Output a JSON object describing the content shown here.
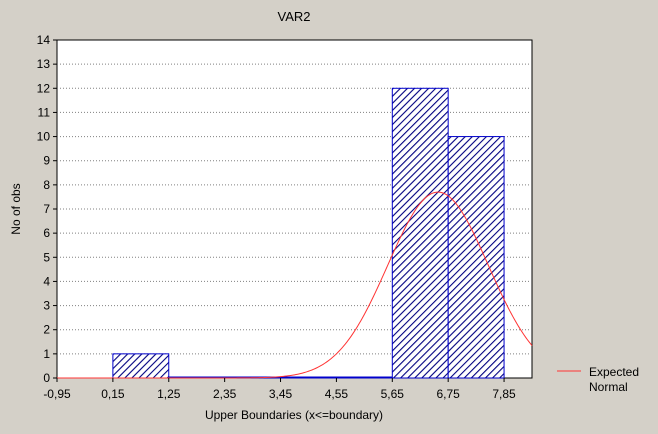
{
  "chart_data": {
    "type": "bar",
    "title": "VAR2",
    "xlabel": "Upper Boundaries (x<=boundary)",
    "ylabel": "No of obs",
    "x_tick_labels": [
      "-0,95",
      "0,15",
      "1,25",
      "2,35",
      "3,45",
      "4,55",
      "5,65",
      "6,75",
      "7,85"
    ],
    "x_ticks": [
      -0.95,
      0.15,
      1.25,
      2.35,
      3.45,
      4.55,
      5.65,
      6.75,
      7.85
    ],
    "xlim": [
      -0.95,
      8.4
    ],
    "ylim": [
      0,
      14
    ],
    "y_ticks": [
      0,
      1,
      2,
      3,
      4,
      5,
      6,
      7,
      8,
      9,
      10,
      11,
      12,
      13,
      14
    ],
    "grid": "horizontal dotted",
    "bins": [
      {
        "from": 0.15,
        "to": 1.25,
        "count": 1
      },
      {
        "from": 1.25,
        "to": 2.35,
        "count": 0
      },
      {
        "from": 2.35,
        "to": 3.45,
        "count": 0
      },
      {
        "from": 3.45,
        "to": 4.55,
        "count": 0
      },
      {
        "from": 4.55,
        "to": 5.65,
        "count": 0
      },
      {
        "from": 5.65,
        "to": 6.75,
        "count": 12
      },
      {
        "from": 6.75,
        "to": 7.85,
        "count": 10
      }
    ],
    "expected_normal": {
      "name": "Expected Normal",
      "mean": 6.55,
      "sd": 0.99,
      "peak": 7.7
    },
    "legend": {
      "placement": "right",
      "lines": [
        "Expected",
        "Normal"
      ]
    },
    "colors": {
      "bar_fill": "#ffffff",
      "bar_hatch": "#000080",
      "bar_edge": "#0000cc",
      "curve": "#ff3333",
      "background": "#d4d0c8",
      "plot_background": "#ffffff"
    }
  }
}
